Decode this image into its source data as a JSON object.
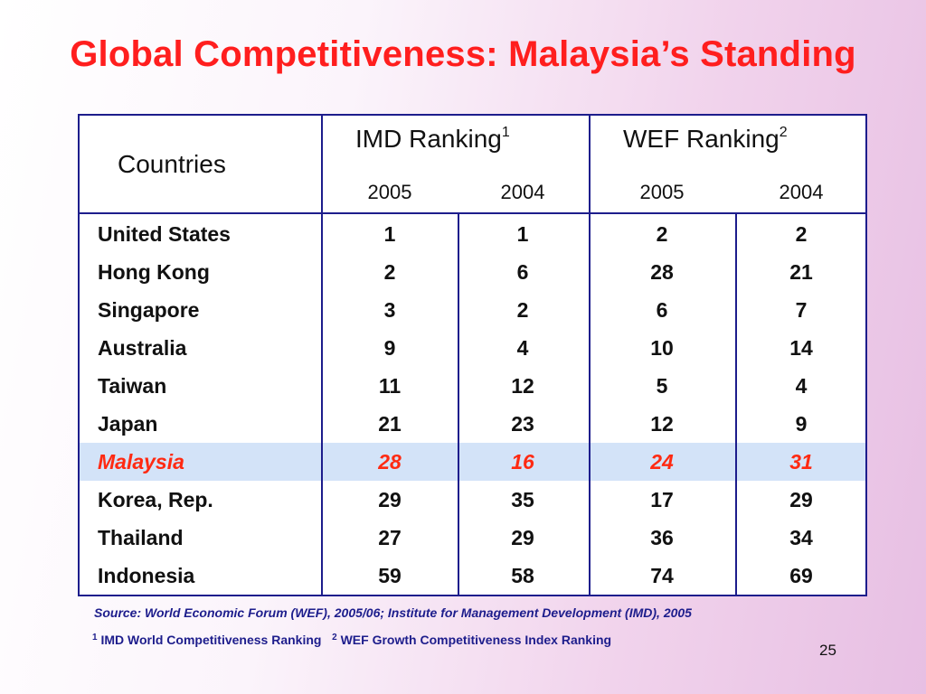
{
  "slide": {
    "title": "Global Competitiveness: Malaysia’s Standing",
    "page_number": "25"
  },
  "table": {
    "col_header_countries": "Countries",
    "group_imd": {
      "label": "IMD Ranking",
      "note": "1"
    },
    "group_wef": {
      "label": "WEF Ranking",
      "note": "2"
    },
    "years": [
      "2005",
      "2004",
      "2005",
      "2004"
    ],
    "rows": [
      {
        "country": "United States",
        "imd_2005": "1",
        "imd_2004": "1",
        "wef_2005": "2",
        "wef_2004": "2"
      },
      {
        "country": "Hong Kong",
        "imd_2005": "2",
        "imd_2004": "6",
        "wef_2005": "28",
        "wef_2004": "21"
      },
      {
        "country": "Singapore",
        "imd_2005": "3",
        "imd_2004": "2",
        "wef_2005": "6",
        "wef_2004": "7"
      },
      {
        "country": "Australia",
        "imd_2005": "9",
        "imd_2004": "4",
        "wef_2005": "10",
        "wef_2004": "14"
      },
      {
        "country": "Taiwan",
        "imd_2005": "11",
        "imd_2004": "12",
        "wef_2005": "5",
        "wef_2004": "4"
      },
      {
        "country": "Japan",
        "imd_2005": "21",
        "imd_2004": "23",
        "wef_2005": "12",
        "wef_2004": "9"
      },
      {
        "country": "Malaysia",
        "imd_2005": "28",
        "imd_2004": "16",
        "wef_2005": "24",
        "wef_2004": "31"
      },
      {
        "country": "Korea, Rep.",
        "imd_2005": "29",
        "imd_2004": "35",
        "wef_2005": "17",
        "wef_2004": "29"
      },
      {
        "country": "Thailand",
        "imd_2005": "27",
        "imd_2004": "29",
        "wef_2005": "36",
        "wef_2004": "34"
      },
      {
        "country": "Indonesia",
        "imd_2005": "59",
        "imd_2004": "58",
        "wef_2005": "74",
        "wef_2004": "69"
      }
    ],
    "highlight_color": "#d3e3f8",
    "highlight_text_color": "#ff2a12"
  },
  "notes": {
    "source": "Source: World Economic Forum (WEF), 2005/06; Institute for Management Development (IMD), 2005",
    "footnote1_mark": "1",
    "footnote1_text": " IMD World Competitiveness Ranking",
    "footnote2_mark": "2",
    "footnote2_text": " WEF Growth Competitiveness Index Ranking"
  },
  "colors": {
    "title": "#ff1e1e",
    "border": "#1d1d8c"
  }
}
